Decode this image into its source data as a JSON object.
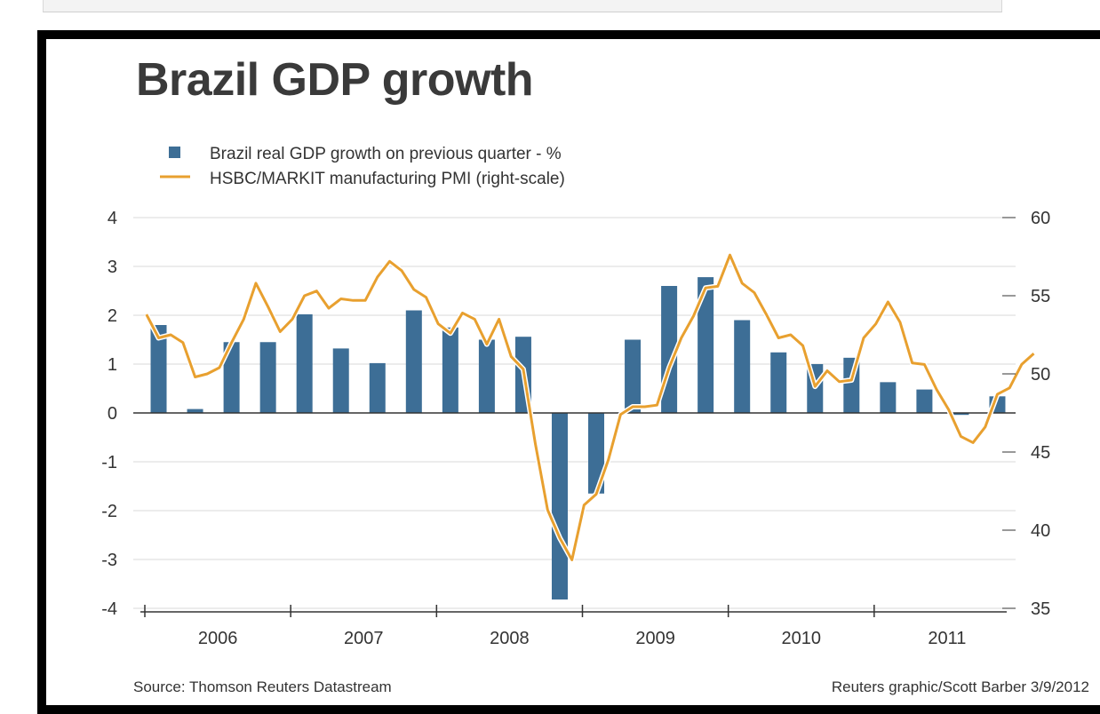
{
  "colors": {
    "bar": "#3d6e96",
    "line": "#e8a02f",
    "grid": "#d9d9d9",
    "axis": "#333333",
    "text": "#333333",
    "title": "#3a3a3a"
  },
  "footer": {
    "source": "Source: Thomson Reuters Datastream",
    "credit": "Reuters graphic/Scott Barber 3/9/2012"
  },
  "chart_data": {
    "type": "bar",
    "title": "Brazil GDP growth",
    "legend_position": "top-left",
    "grid": true,
    "left_axis": {
      "ylim": [
        -4,
        4
      ],
      "ticks": [
        "4",
        "3",
        "2",
        "1",
        "0",
        "-1",
        "-2",
        "-3",
        "-4"
      ]
    },
    "right_axis": {
      "ylim": [
        35,
        60
      ],
      "ticks": [
        "60",
        "55",
        "50",
        "45",
        "40",
        "35"
      ]
    },
    "years": [
      "2006",
      "2007",
      "2008",
      "2009",
      "2010",
      "2011"
    ],
    "bar_series": {
      "name": "Brazil real GDP growth on previous quarter - %",
      "x": [
        "2006 Q1",
        "2006 Q2",
        "2006 Q3",
        "2006 Q4",
        "2007 Q1",
        "2007 Q2",
        "2007 Q3",
        "2007 Q4",
        "2008 Q1",
        "2008 Q2",
        "2008 Q3",
        "2008 Q4",
        "2009 Q1",
        "2009 Q2",
        "2009 Q3",
        "2009 Q4",
        "2010 Q1",
        "2010 Q2",
        "2010 Q3",
        "2010 Q4",
        "2011 Q1",
        "2011 Q2",
        "2011 Q3",
        "2011 Q4"
      ],
      "values": [
        1.8,
        0.08,
        1.45,
        1.45,
        2.02,
        1.32,
        1.02,
        2.1,
        1.75,
        1.5,
        1.56,
        -3.82,
        -1.65,
        1.5,
        2.6,
        2.78,
        1.9,
        1.24,
        1.0,
        1.13,
        0.63,
        0.48,
        -0.04,
        0.34
      ]
    },
    "line_series": {
      "name": "HSBC/MARKIT manufacturing PMI (right-scale)",
      "axis": "right",
      "x": [
        "2006-01",
        "2006-02",
        "2006-03",
        "2006-04",
        "2006-05",
        "2006-06",
        "2006-07",
        "2006-08",
        "2006-09",
        "2006-10",
        "2006-11",
        "2006-12",
        "2007-01",
        "2007-02",
        "2007-03",
        "2007-04",
        "2007-05",
        "2007-06",
        "2007-07",
        "2007-08",
        "2007-09",
        "2007-10",
        "2007-11",
        "2007-12",
        "2008-01",
        "2008-02",
        "2008-03",
        "2008-04",
        "2008-05",
        "2008-06",
        "2008-07",
        "2008-08",
        "2008-09",
        "2008-10",
        "2008-11",
        "2008-12",
        "2009-01",
        "2009-02",
        "2009-03",
        "2009-04",
        "2009-05",
        "2009-06",
        "2009-07",
        "2009-08",
        "2009-09",
        "2009-10",
        "2009-11",
        "2009-12",
        "2010-01",
        "2010-02",
        "2010-03",
        "2010-04",
        "2010-05",
        "2010-06",
        "2010-07",
        "2010-08",
        "2010-09",
        "2010-10",
        "2010-11",
        "2010-12",
        "2011-01",
        "2011-02",
        "2011-03",
        "2011-04",
        "2011-05",
        "2011-06",
        "2011-07",
        "2011-08",
        "2011-09",
        "2011-10",
        "2011-11",
        "2011-12",
        "2012-01",
        "2012-02"
      ],
      "values": [
        53.8,
        52.3,
        52.5,
        52.0,
        49.8,
        50.0,
        50.4,
        52.0,
        53.5,
        55.8,
        54.3,
        52.7,
        53.5,
        55.0,
        55.3,
        54.2,
        54.8,
        54.7,
        54.7,
        56.2,
        57.2,
        56.6,
        55.4,
        54.9,
        53.2,
        52.6,
        53.9,
        53.5,
        51.9,
        53.5,
        51.1,
        50.3,
        45.5,
        41.3,
        39.5,
        38.1,
        41.6,
        42.3,
        44.5,
        47.4,
        47.9,
        47.9,
        48.0,
        50.4,
        52.3,
        53.7,
        55.5,
        55.6,
        57.6,
        55.8,
        55.2,
        53.8,
        52.3,
        52.5,
        51.8,
        49.2,
        50.2,
        49.5,
        49.6,
        52.3,
        53.2,
        54.6,
        53.3,
        50.7,
        50.6,
        49.0,
        47.7,
        46.0,
        45.6,
        46.6,
        48.7,
        49.1,
        50.6,
        51.3
      ]
    }
  }
}
